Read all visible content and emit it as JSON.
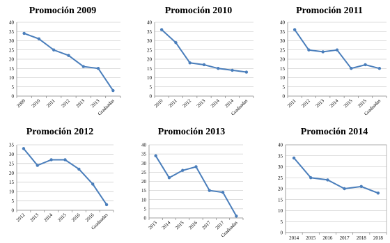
{
  "colors": {
    "series": "#4a7ebb",
    "grid": "#bdbdbd",
    "axis": "#808080"
  },
  "chart_data": [
    {
      "type": "line",
      "title": "Promoción 2009",
      "categories": [
        "2009",
        "2010",
        "2011",
        "2012",
        "2013",
        "2013",
        "Graduadas"
      ],
      "values": [
        34,
        31,
        25,
        22,
        16,
        15,
        3
      ],
      "ylim": [
        0,
        40
      ],
      "ystep": 5,
      "yticks": [
        "0",
        "5",
        "10",
        "15",
        "20",
        "25",
        "30",
        "35",
        "40"
      ],
      "grid": true,
      "border": false,
      "rotated_xlabels": true
    },
    {
      "type": "line",
      "title": "Promoción 2010",
      "categories": [
        "2010",
        "2011",
        "2012",
        "2013",
        "2014",
        "2014",
        "Graduadas"
      ],
      "values": [
        36,
        29,
        18,
        17,
        15,
        14,
        13
      ],
      "ylim": [
        0,
        40
      ],
      "ystep": 5,
      "yticks": [
        "0",
        "5",
        "10",
        "15",
        "20",
        "25",
        "30",
        "35",
        "40"
      ],
      "grid": true,
      "border": false,
      "rotated_xlabels": true
    },
    {
      "type": "line",
      "title": "Promoción 2011",
      "categories": [
        "2011",
        "2012",
        "2013",
        "2014",
        "2015",
        "2015",
        "Graduadas"
      ],
      "values": [
        36,
        25,
        24,
        25,
        15,
        17,
        15
      ],
      "ylim": [
        0,
        40
      ],
      "ystep": 5,
      "yticks": [
        "0",
        "5",
        "10",
        "15",
        "20",
        "25",
        "30",
        "35",
        "40"
      ],
      "grid": true,
      "border": false,
      "rotated_xlabels": true
    },
    {
      "type": "line",
      "title": "Promoción 2012",
      "categories": [
        "2012",
        "2013",
        "2014",
        "2015",
        "2016",
        "2016",
        "Graduadas"
      ],
      "values": [
        33,
        24,
        27,
        27,
        22,
        14,
        3
      ],
      "ylim": [
        0,
        35
      ],
      "ystep": 5,
      "yticks": [
        "0",
        "5",
        "10",
        "15",
        "20",
        "25",
        "30",
        "35"
      ],
      "grid": true,
      "border": false,
      "rotated_xlabels": true
    },
    {
      "type": "line",
      "title": "Promoción 2013",
      "categories": [
        "2013",
        "2014",
        "2015",
        "2016",
        "2017",
        "2017",
        "Graduadas"
      ],
      "values": [
        34,
        22,
        26,
        28,
        15,
        14,
        1
      ],
      "ylim": [
        0,
        40
      ],
      "ystep": 5,
      "yticks": [
        "0",
        "5",
        "10",
        "15",
        "20",
        "25",
        "30",
        "35",
        "40"
      ],
      "grid": true,
      "border": false,
      "rotated_xlabels": true
    },
    {
      "type": "line",
      "title": "Promoción 2014",
      "categories": [
        "2014",
        "2015",
        "2016",
        "2017",
        "2018",
        "2018"
      ],
      "values": [
        34,
        25,
        24,
        20,
        21,
        18
      ],
      "ylim": [
        0,
        40
      ],
      "ystep": 5,
      "yticks": [
        "0",
        "5",
        "10",
        "15",
        "20",
        "25",
        "30",
        "35",
        "40"
      ],
      "grid": true,
      "border": true,
      "rotated_xlabels": false
    }
  ]
}
